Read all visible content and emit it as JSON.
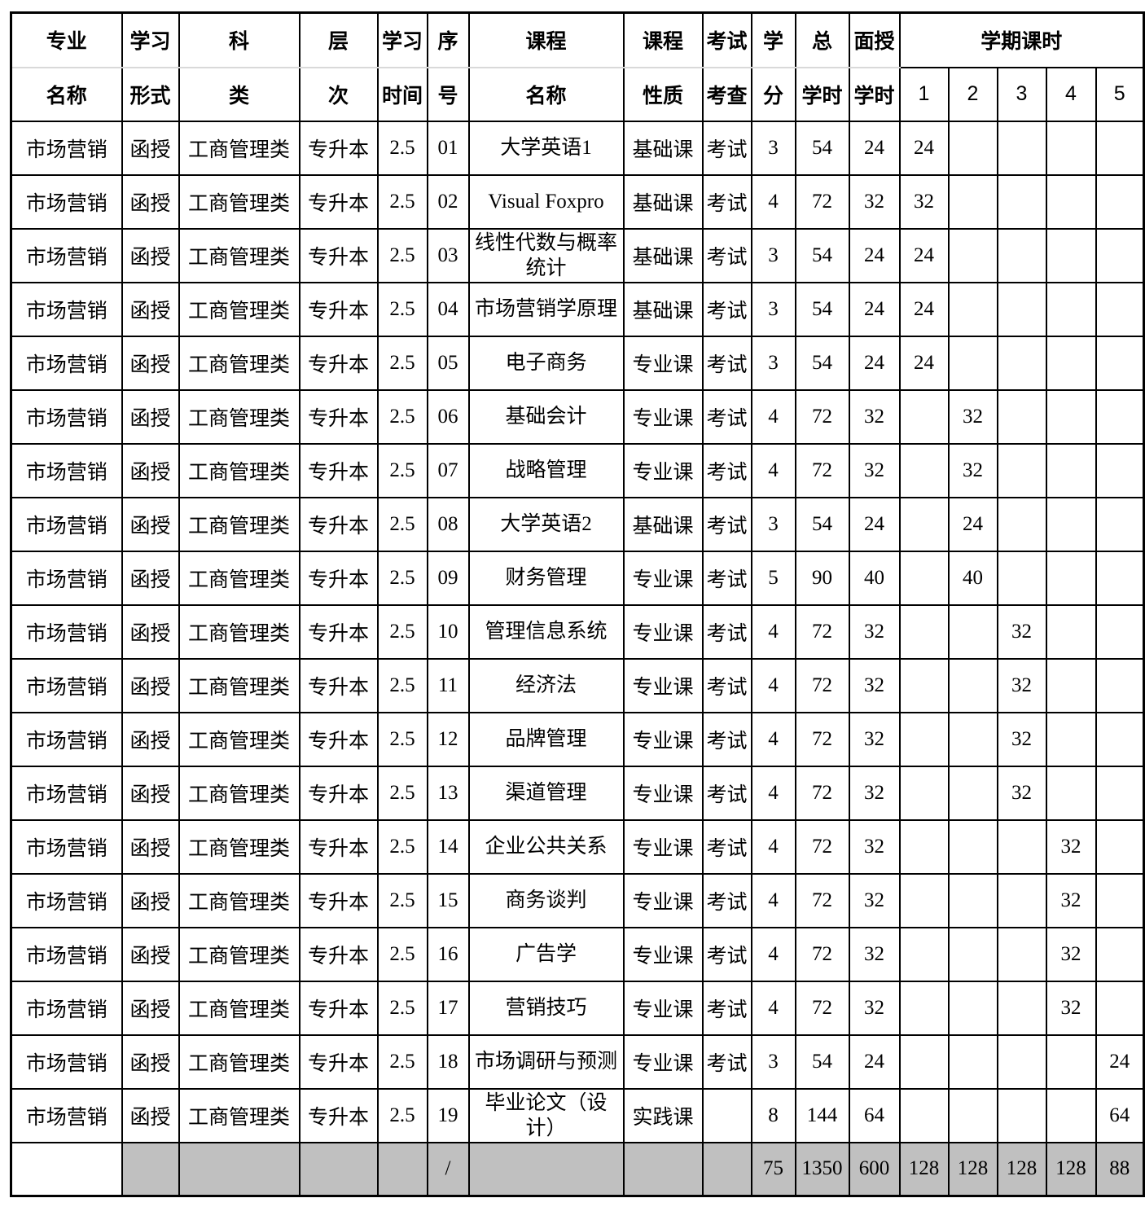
{
  "colors": {
    "border": "#000000",
    "header_divider": "#d9d9d9",
    "totals_bg": "#c0c0c0"
  },
  "table": {
    "header": {
      "top": [
        "专业",
        "学习",
        "科",
        "层",
        "学习",
        "序",
        "课程",
        "课程",
        "考试",
        "学",
        "总",
        "面授"
      ],
      "bottom": [
        "名称",
        "形式",
        "类",
        "次",
        "时间",
        "号",
        "名称",
        "性质",
        "考查",
        "分",
        "学时",
        "学时"
      ],
      "semester_group": "学期课时",
      "semesters": [
        "1",
        "2",
        "3",
        "4",
        "5"
      ]
    },
    "rows": [
      {
        "major": "市场营销",
        "form": "函授",
        "category": "工商管理类",
        "level": "专升本",
        "duration": "2.5",
        "no": "01",
        "course": "大学英语1",
        "nature": "基础课",
        "exam": "考试",
        "credits": "3",
        "total_hours": "54",
        "face_hours": "24",
        "sem": [
          "24",
          "",
          "",
          "",
          ""
        ]
      },
      {
        "major": "市场营销",
        "form": "函授",
        "category": "工商管理类",
        "level": "专升本",
        "duration": "2.5",
        "no": "02",
        "course": "Visual Foxpro",
        "nature": "基础课",
        "exam": "考试",
        "credits": "4",
        "total_hours": "72",
        "face_hours": "32",
        "sem": [
          "32",
          "",
          "",
          "",
          ""
        ]
      },
      {
        "major": "市场营销",
        "form": "函授",
        "category": "工商管理类",
        "level": "专升本",
        "duration": "2.5",
        "no": "03",
        "course": "线性代数与概率统计",
        "nature": "基础课",
        "exam": "考试",
        "credits": "3",
        "total_hours": "54",
        "face_hours": "24",
        "sem": [
          "24",
          "",
          "",
          "",
          ""
        ]
      },
      {
        "major": "市场营销",
        "form": "函授",
        "category": "工商管理类",
        "level": "专升本",
        "duration": "2.5",
        "no": "04",
        "course": "市场营销学原理",
        "nature": "基础课",
        "exam": "考试",
        "credits": "3",
        "total_hours": "54",
        "face_hours": "24",
        "sem": [
          "24",
          "",
          "",
          "",
          ""
        ]
      },
      {
        "major": "市场营销",
        "form": "函授",
        "category": "工商管理类",
        "level": "专升本",
        "duration": "2.5",
        "no": "05",
        "course": "电子商务",
        "nature": "专业课",
        "exam": "考试",
        "credits": "3",
        "total_hours": "54",
        "face_hours": "24",
        "sem": [
          "24",
          "",
          "",
          "",
          ""
        ]
      },
      {
        "major": "市场营销",
        "form": "函授",
        "category": "工商管理类",
        "level": "专升本",
        "duration": "2.5",
        "no": "06",
        "course": "基础会计",
        "nature": "专业课",
        "exam": "考试",
        "credits": "4",
        "total_hours": "72",
        "face_hours": "32",
        "sem": [
          "",
          "32",
          "",
          "",
          ""
        ]
      },
      {
        "major": "市场营销",
        "form": "函授",
        "category": "工商管理类",
        "level": "专升本",
        "duration": "2.5",
        "no": "07",
        "course": "战略管理",
        "nature": "专业课",
        "exam": "考试",
        "credits": "4",
        "total_hours": "72",
        "face_hours": "32",
        "sem": [
          "",
          "32",
          "",
          "",
          ""
        ]
      },
      {
        "major": "市场营销",
        "form": "函授",
        "category": "工商管理类",
        "level": "专升本",
        "duration": "2.5",
        "no": "08",
        "course": "大学英语2",
        "nature": "基础课",
        "exam": "考试",
        "credits": "3",
        "total_hours": "54",
        "face_hours": "24",
        "sem": [
          "",
          "24",
          "",
          "",
          ""
        ]
      },
      {
        "major": "市场营销",
        "form": "函授",
        "category": "工商管理类",
        "level": "专升本",
        "duration": "2.5",
        "no": "09",
        "course": "财务管理",
        "nature": "专业课",
        "exam": "考试",
        "credits": "5",
        "total_hours": "90",
        "face_hours": "40",
        "sem": [
          "",
          "40",
          "",
          "",
          ""
        ]
      },
      {
        "major": "市场营销",
        "form": "函授",
        "category": "工商管理类",
        "level": "专升本",
        "duration": "2.5",
        "no": "10",
        "course": "管理信息系统",
        "nature": "专业课",
        "exam": "考试",
        "credits": "4",
        "total_hours": "72",
        "face_hours": "32",
        "sem": [
          "",
          "",
          "32",
          "",
          ""
        ]
      },
      {
        "major": "市场营销",
        "form": "函授",
        "category": "工商管理类",
        "level": "专升本",
        "duration": "2.5",
        "no": "11",
        "course": "经济法",
        "nature": "专业课",
        "exam": "考试",
        "credits": "4",
        "total_hours": "72",
        "face_hours": "32",
        "sem": [
          "",
          "",
          "32",
          "",
          ""
        ]
      },
      {
        "major": "市场营销",
        "form": "函授",
        "category": "工商管理类",
        "level": "专升本",
        "duration": "2.5",
        "no": "12",
        "course": "品牌管理",
        "nature": "专业课",
        "exam": "考试",
        "credits": "4",
        "total_hours": "72",
        "face_hours": "32",
        "sem": [
          "",
          "",
          "32",
          "",
          ""
        ]
      },
      {
        "major": "市场营销",
        "form": "函授",
        "category": "工商管理类",
        "level": "专升本",
        "duration": "2.5",
        "no": "13",
        "course": "渠道管理",
        "nature": "专业课",
        "exam": "考试",
        "credits": "4",
        "total_hours": "72",
        "face_hours": "32",
        "sem": [
          "",
          "",
          "32",
          "",
          ""
        ]
      },
      {
        "major": "市场营销",
        "form": "函授",
        "category": "工商管理类",
        "level": "专升本",
        "duration": "2.5",
        "no": "14",
        "course": "企业公共关系",
        "nature": "专业课",
        "exam": "考试",
        "credits": "4",
        "total_hours": "72",
        "face_hours": "32",
        "sem": [
          "",
          "",
          "",
          "32",
          ""
        ]
      },
      {
        "major": "市场营销",
        "form": "函授",
        "category": "工商管理类",
        "level": "专升本",
        "duration": "2.5",
        "no": "15",
        "course": "商务谈判",
        "nature": "专业课",
        "exam": "考试",
        "credits": "4",
        "total_hours": "72",
        "face_hours": "32",
        "sem": [
          "",
          "",
          "",
          "32",
          ""
        ]
      },
      {
        "major": "市场营销",
        "form": "函授",
        "category": "工商管理类",
        "level": "专升本",
        "duration": "2.5",
        "no": "16",
        "course": "广告学",
        "nature": "专业课",
        "exam": "考试",
        "credits": "4",
        "total_hours": "72",
        "face_hours": "32",
        "sem": [
          "",
          "",
          "",
          "32",
          ""
        ]
      },
      {
        "major": "市场营销",
        "form": "函授",
        "category": "工商管理类",
        "level": "专升本",
        "duration": "2.5",
        "no": "17",
        "course": "营销技巧",
        "nature": "专业课",
        "exam": "考试",
        "credits": "4",
        "total_hours": "72",
        "face_hours": "32",
        "sem": [
          "",
          "",
          "",
          "32",
          ""
        ]
      },
      {
        "major": "市场营销",
        "form": "函授",
        "category": "工商管理类",
        "level": "专升本",
        "duration": "2.5",
        "no": "18",
        "course": "市场调研与预测",
        "nature": "专业课",
        "exam": "考试",
        "credits": "3",
        "total_hours": "54",
        "face_hours": "24",
        "sem": [
          "",
          "",
          "",
          "",
          "24"
        ]
      },
      {
        "major": "市场营销",
        "form": "函授",
        "category": "工商管理类",
        "level": "专升本",
        "duration": "2.5",
        "no": "19",
        "course": "毕业论文（设计）",
        "nature": "实践课",
        "exam": "",
        "credits": "8",
        "total_hours": "144",
        "face_hours": "64",
        "sem": [
          "",
          "",
          "",
          "",
          "64"
        ]
      }
    ],
    "totals": {
      "no_slash": "/",
      "credits": "75",
      "total_hours": "1350",
      "face_hours": "600",
      "sem": [
        "128",
        "128",
        "128",
        "128",
        "88"
      ]
    }
  }
}
